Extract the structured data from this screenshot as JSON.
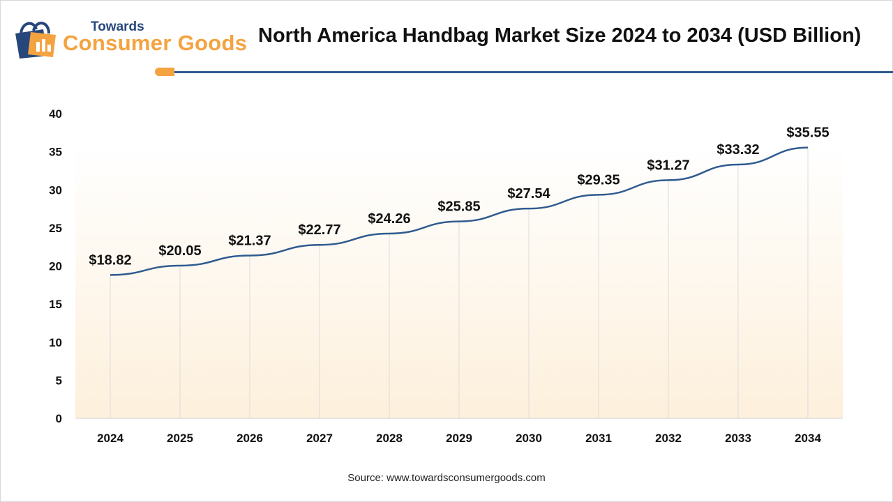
{
  "header": {
    "logo_top": "Towards",
    "logo_main": "Consumer Goods",
    "title": "North America Handbag Market Size 2024 to 2034 (USD Billion)"
  },
  "source": "Source: www.towardsconsumergoods.com",
  "chart_data": {
    "type": "line",
    "title": "North America Handbag Market Size 2024 to 2034 (USD Billion)",
    "categories": [
      "2024",
      "2025",
      "2026",
      "2027",
      "2028",
      "2029",
      "2030",
      "2031",
      "2032",
      "2033",
      "2034"
    ],
    "values": [
      18.82,
      20.05,
      21.37,
      22.77,
      24.26,
      25.85,
      27.54,
      29.35,
      31.27,
      33.32,
      35.55
    ],
    "data_labels": [
      "$18.82",
      "$20.05",
      "$21.37",
      "$22.77",
      "$24.26",
      "$25.85",
      "$27.54",
      "$29.35",
      "$31.27",
      "$33.32",
      "$35.55"
    ],
    "ylim": [
      0,
      40
    ],
    "yticks": [
      0,
      5,
      10,
      15,
      20,
      25,
      30,
      35,
      40
    ],
    "grid": "vertical",
    "line_color": "#2f5b8f",
    "background_gradient": [
      "#fdf3e3",
      "#ffffff"
    ]
  }
}
